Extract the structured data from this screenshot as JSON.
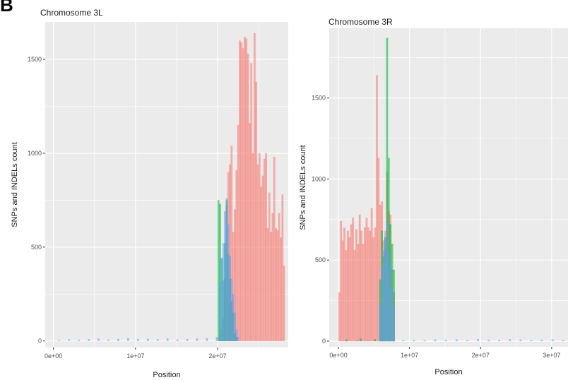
{
  "figure": {
    "panel_label": "B"
  },
  "colors": {
    "panel_bg": "#ebebeb",
    "grid": "#ffffff",
    "tick_text": "#4d4d4d",
    "text": "#1a1a1a",
    "series_red": "#f8766d",
    "series_green": "#00ba38",
    "series_blue": "#619cff"
  },
  "chart_data": [
    {
      "type": "bar",
      "title": "Chromosome 3L",
      "xlabel": "Position",
      "ylabel": "SNPs and INDELs count",
      "x_ticks": [
        0,
        10000000,
        20000000
      ],
      "x_tick_labels": [
        "0e+00",
        "1e+07",
        "2e+07"
      ],
      "xlim": [
        -1000000,
        28600000
      ],
      "y_ticks": [
        0,
        500,
        1000,
        1500
      ],
      "y_tick_labels": [
        "0",
        "500",
        "1000",
        "1500"
      ],
      "ylim": [
        -35,
        1700
      ],
      "bin_width": 200000,
      "legend": "none",
      "grid": true,
      "series": [
        {
          "color": "#f8766d",
          "x": [
            20200000,
            20400000,
            20600000,
            20800000,
            21000000,
            21200000,
            21400000,
            21600000,
            21800000,
            22000000,
            22200000,
            22400000,
            22600000,
            22800000,
            23000000,
            23200000,
            23400000,
            23600000,
            23800000,
            24000000,
            24200000,
            24400000,
            24600000,
            24800000,
            25000000,
            25200000,
            25400000,
            25600000,
            25800000,
            26000000,
            26200000,
            26400000,
            26600000,
            26800000,
            27000000,
            27200000,
            27400000,
            27600000,
            27800000,
            28000000
          ],
          "values": [
            30,
            60,
            120,
            330,
            720,
            900,
            940,
            1040,
            580,
            700,
            910,
            1150,
            1600,
            1590,
            1560,
            1620,
            1610,
            1530,
            1160,
            1480,
            1000,
            1640,
            1380,
            940,
            1000,
            820,
            880,
            970,
            1000,
            600,
            790,
            580,
            680,
            980,
            600,
            590,
            680,
            550,
            780,
            400
          ]
        },
        {
          "color": "#00ba38",
          "x": [
            20000000,
            20200000,
            20400000,
            20600000,
            20800000,
            21000000,
            21200000,
            21400000,
            21600000,
            21800000,
            22000000,
            22200000
          ],
          "values": [
            750,
            730,
            440,
            320,
            520,
            750,
            460,
            330,
            210,
            150,
            40,
            20
          ]
        },
        {
          "color": "#619cff",
          "x": [
            600000,
            1800000,
            3000000,
            4200000,
            5400000,
            6600000,
            7800000,
            9000000,
            10200000,
            11400000,
            12600000,
            13800000,
            15000000,
            16200000,
            17400000,
            18600000,
            19800000,
            20200000,
            20400000,
            20600000,
            20800000,
            21000000,
            21200000,
            21400000,
            21600000,
            21800000,
            22000000,
            22200000,
            22400000
          ],
          "values": [
            5,
            8,
            6,
            9,
            12,
            7,
            10,
            14,
            9,
            11,
            8,
            13,
            7,
            10,
            12,
            15,
            20,
            310,
            440,
            520,
            690,
            760,
            620,
            450,
            330,
            250,
            150,
            60,
            20
          ]
        }
      ]
    },
    {
      "type": "bar",
      "title": "Chromosome 3R",
      "xlabel": "Position",
      "ylabel": "SNPs and INDELs count",
      "x_ticks": [
        0,
        10000000,
        20000000,
        30000000
      ],
      "x_tick_labels": [
        "0e+00",
        "1e+07",
        "2e+07",
        "3e+07"
      ],
      "xlim": [
        -1300000,
        32300000
      ],
      "y_ticks": [
        0,
        500,
        1000,
        1500
      ],
      "y_tick_labels": [
        "0",
        "500",
        "1000",
        "1500"
      ],
      "ylim": [
        -35,
        1930
      ],
      "bin_width": 240000,
      "legend": "none",
      "grid": true,
      "series": [
        {
          "color": "#f8766d",
          "x": [
            0,
            240000,
            480000,
            720000,
            960000,
            1200000,
            1440000,
            1680000,
            1920000,
            2160000,
            2400000,
            2640000,
            2880000,
            3120000,
            3360000,
            3600000,
            3840000,
            4080000,
            4320000,
            4560000,
            4800000,
            5040000,
            5280000,
            5520000,
            5760000,
            6000000,
            6240000,
            6480000,
            6720000,
            6960000,
            7200000,
            7440000,
            7680000
          ],
          "values": [
            300,
            740,
            620,
            700,
            560,
            680,
            640,
            720,
            760,
            560,
            690,
            600,
            780,
            680,
            600,
            700,
            760,
            700,
            680,
            820,
            640,
            700,
            1640,
            1130,
            840,
            860,
            620,
            680,
            1040,
            800,
            780,
            440,
            300
          ]
        },
        {
          "color": "#00ba38",
          "x": [
            5760000,
            6000000,
            6240000,
            6480000,
            6720000,
            6960000,
            7200000,
            7440000,
            7680000,
            1000000,
            3000000,
            5000000
          ],
          "values": [
            380,
            680,
            520,
            640,
            1870,
            1130,
            720,
            600,
            440,
            10,
            15,
            12
          ]
        },
        {
          "color": "#619cff",
          "x": [
            1000000,
            2500000,
            4000000,
            5760000,
            6000000,
            6240000,
            6480000,
            6720000,
            6960000,
            7200000,
            7440000,
            7680000,
            9000000,
            10500000,
            12000000,
            13500000,
            15000000,
            16500000,
            18000000,
            19500000,
            21000000,
            22500000,
            24000000,
            25500000,
            27000000,
            28500000,
            30000000,
            31500000
          ],
          "values": [
            4,
            6,
            5,
            220,
            460,
            560,
            640,
            730,
            560,
            480,
            320,
            210,
            6,
            8,
            5,
            9,
            7,
            10,
            6,
            12,
            8,
            7,
            11,
            9,
            6,
            8,
            10,
            7
          ]
        }
      ]
    }
  ]
}
